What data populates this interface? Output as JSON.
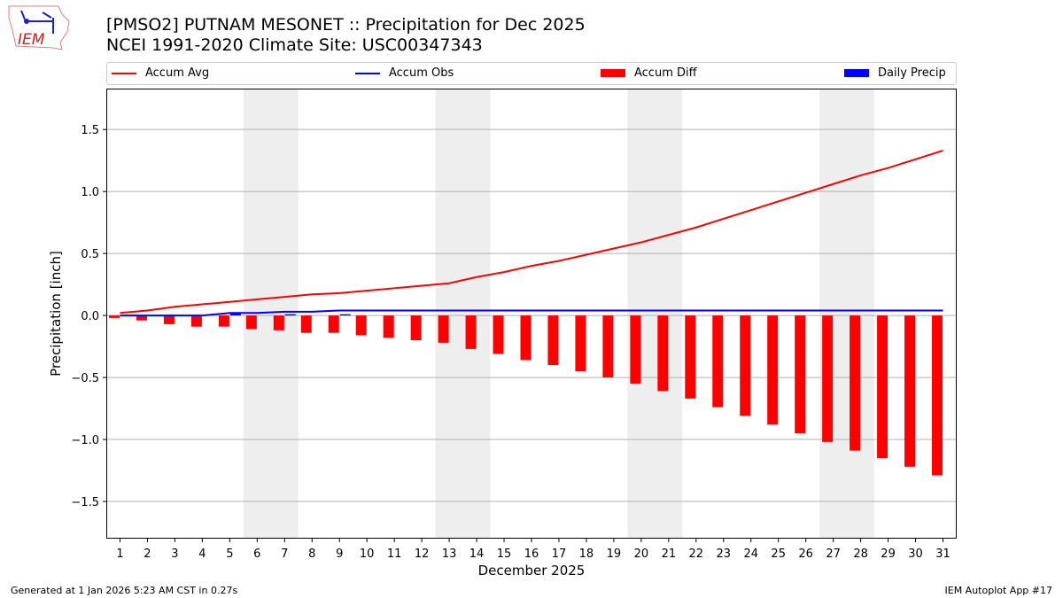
{
  "header": {
    "title_line1": "[PMSO2] PUTNAM MESONET :: Precipitation for Dec 2025",
    "title_line2": "NCEI 1991-2020 Climate Site: USC00347343",
    "logo_text": "IEM"
  },
  "footer": {
    "left": "Generated at 1 Jan 2026 5:23 AM CST in 0.27s",
    "right": "IEM Autoplot App #17"
  },
  "chart_data": {
    "type": "bar",
    "xlabel": "December 2025",
    "ylabel": "Precipitation [inch]",
    "ylim": [
      -1.8,
      1.83
    ],
    "grid": true,
    "legend_position": "top",
    "yticks": [
      -1.5,
      -1.0,
      -0.5,
      0.0,
      0.5,
      1.0,
      1.5
    ],
    "ytick_labels": [
      "−1.5",
      "−1.0",
      "−0.5",
      "0.0",
      "0.5",
      "1.0",
      "1.5"
    ],
    "x": [
      1,
      2,
      3,
      4,
      5,
      6,
      7,
      8,
      9,
      10,
      11,
      12,
      13,
      14,
      15,
      16,
      17,
      18,
      19,
      20,
      21,
      22,
      23,
      24,
      25,
      26,
      27,
      28,
      29,
      30,
      31
    ],
    "weekend_shading": [
      [
        6,
        7
      ],
      [
        13,
        14
      ],
      [
        20,
        21
      ],
      [
        27,
        28
      ]
    ],
    "series": [
      {
        "name": "Accum Avg",
        "kind": "line",
        "color": "#ff0000",
        "values": [
          0.02,
          0.04,
          0.07,
          0.09,
          0.11,
          0.13,
          0.15,
          0.17,
          0.18,
          0.2,
          0.22,
          0.24,
          0.26,
          0.31,
          0.35,
          0.4,
          0.44,
          0.49,
          0.54,
          0.59,
          0.65,
          0.71,
          0.78,
          0.85,
          0.92,
          0.99,
          1.06,
          1.13,
          1.19,
          1.26,
          1.33
        ]
      },
      {
        "name": "Accum Obs",
        "kind": "line",
        "color": "#0000ff",
        "values": [
          0,
          0,
          0,
          0,
          0.02,
          0.02,
          0.03,
          0.03,
          0.04,
          0.04,
          0.04,
          0.04,
          0.04,
          0.04,
          0.04,
          0.04,
          0.04,
          0.04,
          0.04,
          0.04,
          0.04,
          0.04,
          0.04,
          0.04,
          0.04,
          0.04,
          0.04,
          0.04,
          0.04,
          0.04,
          0.04
        ]
      },
      {
        "name": "Accum Diff",
        "kind": "bar",
        "color": "#ff0000",
        "values": [
          -0.02,
          -0.04,
          -0.07,
          -0.09,
          -0.09,
          -0.11,
          -0.12,
          -0.14,
          -0.14,
          -0.16,
          -0.18,
          -0.2,
          -0.22,
          -0.27,
          -0.31,
          -0.36,
          -0.4,
          -0.45,
          -0.5,
          -0.55,
          -0.61,
          -0.67,
          -0.74,
          -0.81,
          -0.88,
          -0.95,
          -1.02,
          -1.09,
          -1.15,
          -1.22,
          -1.29
        ]
      },
      {
        "name": "Daily Precip",
        "kind": "bar",
        "color": "#0000ff",
        "values": [
          0,
          0,
          0,
          0,
          0.02,
          0,
          0.01,
          0,
          0.01,
          0,
          0,
          0,
          0,
          0,
          0,
          0,
          0,
          0,
          0,
          0,
          0,
          0,
          0,
          0,
          0,
          0,
          0,
          0,
          0,
          0,
          0
        ]
      }
    ]
  }
}
